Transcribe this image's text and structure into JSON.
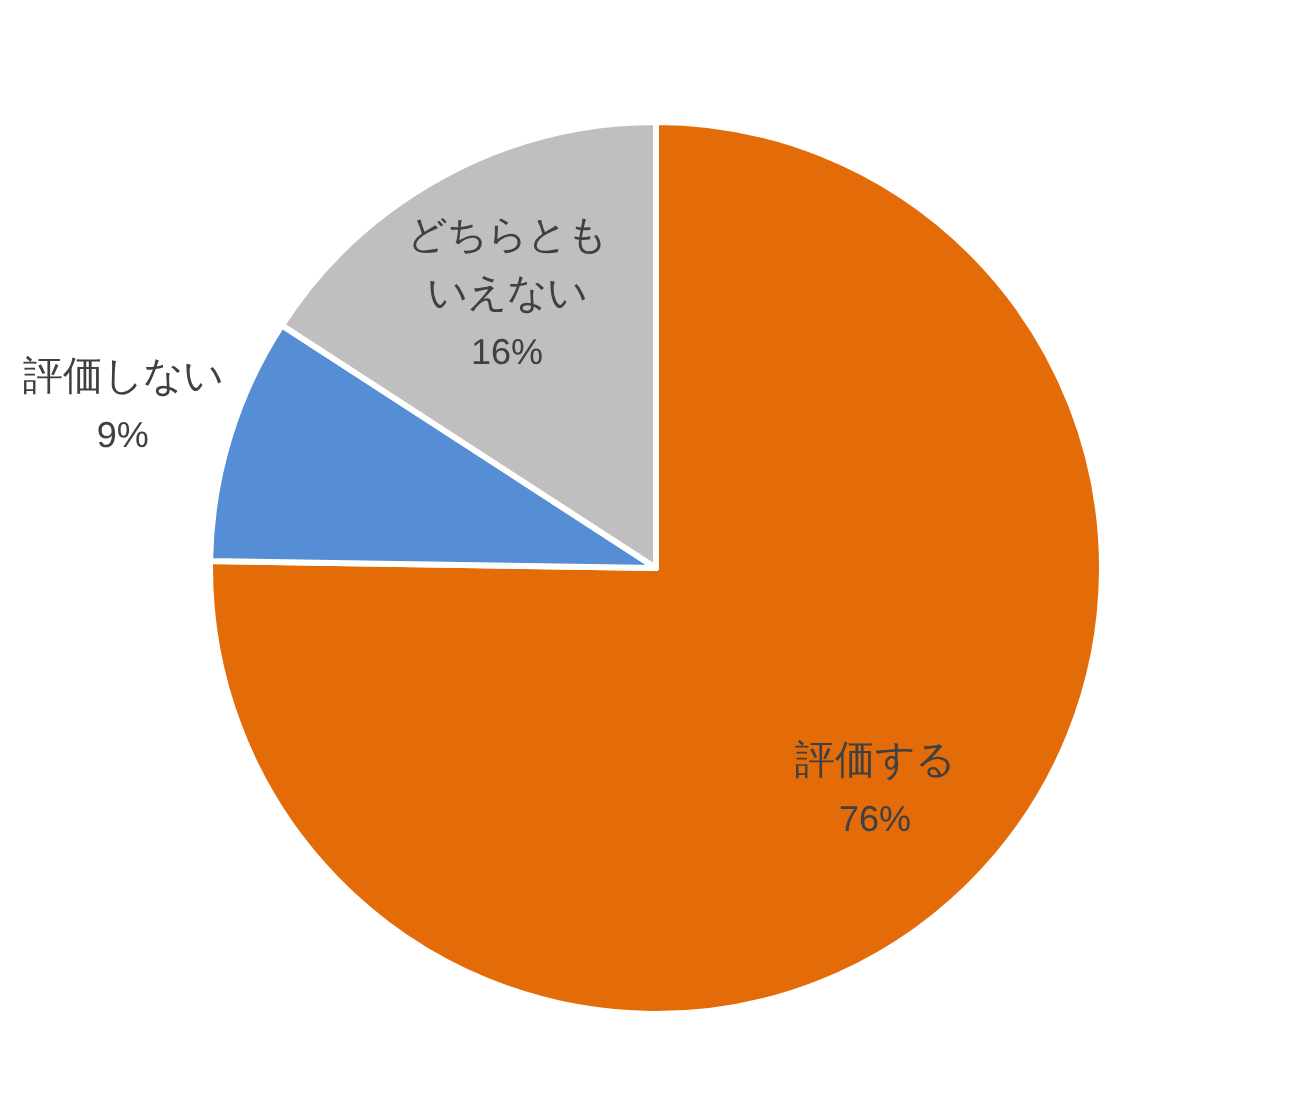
{
  "chart_data": {
    "type": "pie",
    "categories": [
      "評価する",
      "評価しない",
      "どちらともいえない"
    ],
    "values": [
      76,
      9,
      16
    ],
    "colors": [
      "#e36c09",
      "#558ed5",
      "#bfbfbf"
    ],
    "value_labels": [
      "76%",
      "9%",
      "16%"
    ]
  }
}
